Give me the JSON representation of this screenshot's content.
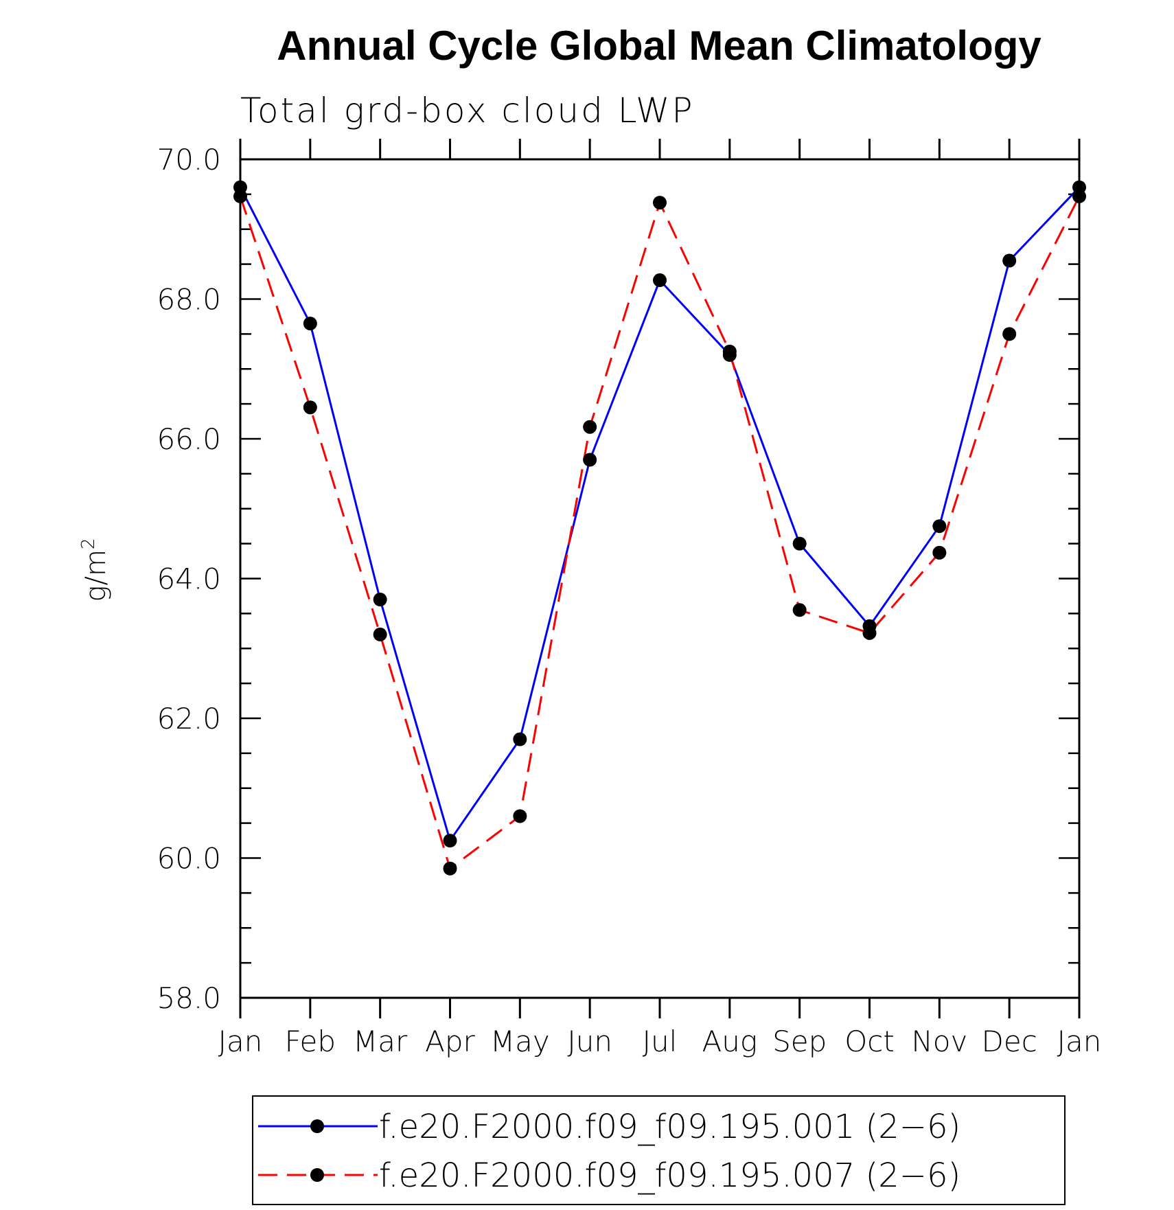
{
  "chart_data": {
    "type": "line",
    "title": "Annual Cycle Global Mean Climatology",
    "subtitle": "Total grd-box cloud LWP",
    "ylabel": "g/m",
    "ylabel_sup": "2",
    "categories": [
      "Jan",
      "Feb",
      "Mar",
      "Apr",
      "May",
      "Jun",
      "Jul",
      "Aug",
      "Sep",
      "Oct",
      "Nov",
      "Dec",
      "Jan"
    ],
    "ylim": [
      58.0,
      70.0
    ],
    "y_major_ticks": [
      58.0,
      60.0,
      62.0,
      64.0,
      66.0,
      68.0,
      70.0
    ],
    "y_tick_labels": [
      "58.0",
      "60.0",
      "62.0",
      "64.0",
      "66.0",
      "68.0",
      "70.0"
    ],
    "legend_position": "bottom",
    "series": [
      {
        "name": "f.e20.F2000.f09_f09.195.001 (2−6)",
        "color": "#0000ff",
        "dash": "solid",
        "marker": "filled-circle",
        "values": [
          69.6,
          67.65,
          63.7,
          60.25,
          61.7,
          65.7,
          68.27,
          67.2,
          64.5,
          63.32,
          64.75,
          68.55,
          69.6
        ]
      },
      {
        "name": "f.e20.F2000.f09_f09.195.007 (2−6)",
        "color": "#ff0000",
        "dash": "dashed",
        "marker": "filled-circle",
        "values": [
          69.47,
          66.45,
          63.2,
          59.85,
          60.6,
          66.17,
          69.38,
          67.25,
          63.55,
          63.22,
          64.37,
          67.5,
          69.47
        ]
      }
    ]
  }
}
